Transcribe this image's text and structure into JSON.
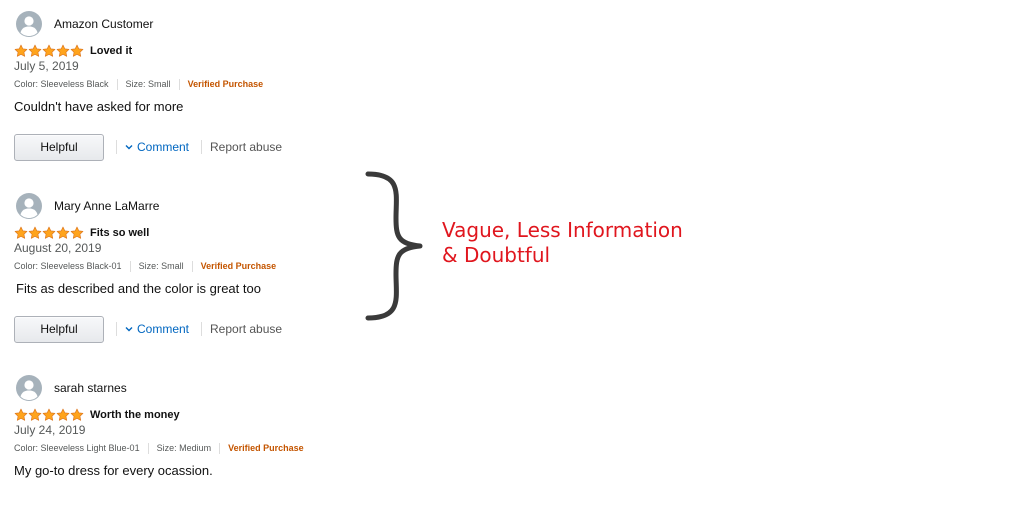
{
  "reviews": [
    {
      "name": "Amazon Customer",
      "rating": 5,
      "title": "Loved it",
      "date": "July 5, 2019",
      "color": "Color: Sleeveless Black",
      "size": "Size: Small",
      "verified": "Verified Purchase",
      "body": "Couldn't have asked for more",
      "helpful_label": "Helpful",
      "comment_label": "Comment",
      "report_label": "Report abuse"
    },
    {
      "name": "Mary Anne LaMarre",
      "rating": 5,
      "title": "Fits so well",
      "date": "August 20, 2019",
      "color": "Color: Sleeveless Black-01",
      "size": "Size: Small",
      "verified": "Verified Purchase",
      "body": "Fits as described and the color is great too",
      "helpful_label": "Helpful",
      "comment_label": "Comment",
      "report_label": "Report abuse"
    },
    {
      "name": "sarah starnes",
      "rating": 5,
      "title": "Worth the money",
      "date": "July 24, 2019",
      "color": "Color: Sleeveless Light Blue-01",
      "size": "Size: Medium",
      "verified": "Verified Purchase",
      "body": "My go-to dress for every ocassion."
    }
  ],
  "annotation": {
    "line1": "Vague, Less Information",
    "line2": "& Doubtful"
  },
  "icons": {
    "avatar": "avatar-icon",
    "star": "star-icon",
    "chevron": "chevron-down-icon",
    "brace": "curly-brace-icon"
  },
  "colors": {
    "star_fill": "#ffa41c",
    "verified": "#c45500",
    "link": "#0066c0",
    "annotation": "#e0161e"
  }
}
